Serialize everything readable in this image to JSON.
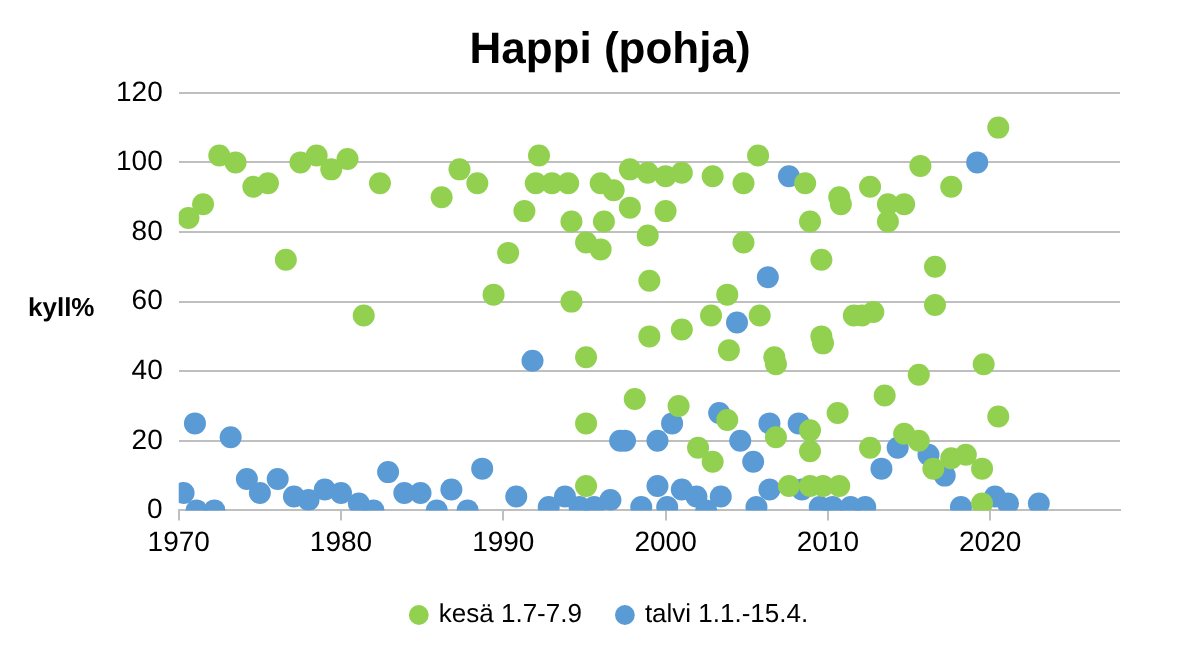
{
  "chart_data": {
    "type": "scatter",
    "title": "Happi (pohja)",
    "ylabel": "kyll%",
    "xlim": [
      1970,
      2028
    ],
    "xticks": [
      1970,
      1980,
      1990,
      2000,
      2010,
      2020
    ],
    "ylim": [
      0,
      120
    ],
    "yticks": [
      0,
      20,
      40,
      60,
      80,
      100,
      120
    ],
    "grid": "y",
    "legend": "bottom",
    "marker": "circle",
    "series": [
      {
        "name": "kesä 1.7-7.9",
        "color": "#92d050",
        "x": [
          1970.6,
          1971.5,
          1972.5,
          1973.5,
          1974.6,
          1975.5,
          1976.6,
          1977.5,
          1978.5,
          1979.4,
          1980.4,
          1981.4,
          1982.4,
          1986.2,
          1987.3,
          1988.4,
          1989.4,
          1990.3,
          1991.3,
          1992.2,
          1992,
          1993,
          1994,
          1994.2,
          1994.2,
          1995.1,
          1996,
          1995.1,
          1995.1,
          1995.1,
          1996.2,
          1996,
          1996.8,
          1997.8,
          1997.8,
          1998.9,
          1998.9,
          1999,
          1999,
          1998.1,
          2000,
          2000,
          2000.8,
          2001,
          2001,
          2002,
          2002.9,
          2002.8,
          2003.8,
          2003.9,
          2003.8,
          2002.9,
          2004.8,
          2004.8,
          2005.7,
          2005.8,
          2006.7,
          2006.8,
          2006.8,
          2007.6,
          2008.6,
          2008.9,
          2009.6,
          2009.6,
          2008.9,
          2008.9,
          2009.7,
          2008.9,
          2010.6,
          2010.7,
          2010.8,
          2009.7,
          2010.7,
          2011.6,
          2012.1,
          2012.8,
          2012.6,
          2012.6,
          2013.5,
          2013.7,
          2013.7,
          2014.7,
          2014.7,
          2015.6,
          2015.7,
          2015.6,
          2016.6,
          2016.6,
          2016.5,
          2017.6,
          2017.6,
          2018.5,
          2019.5,
          2019.6,
          2019.5,
          2020.5,
          2020.5
        ],
        "values": [
          84,
          88,
          102,
          100,
          93,
          94,
          72,
          100,
          102,
          98,
          101,
          56,
          94,
          90,
          98,
          94,
          62,
          74,
          86,
          102,
          94,
          94,
          94,
          83,
          60,
          77,
          75,
          44,
          25,
          7,
          83,
          94,
          92,
          98,
          87,
          97,
          79,
          66,
          50,
          32,
          96,
          86,
          30,
          52,
          97,
          18,
          14,
          56,
          62,
          46,
          26,
          96,
          94,
          77,
          102,
          56,
          44,
          42,
          21,
          7,
          94,
          83,
          72,
          50,
          23,
          7,
          48,
          17,
          28,
          90,
          88,
          7,
          7,
          56,
          56,
          57,
          93,
          18,
          33,
          88,
          83,
          88,
          22,
          39,
          99,
          20,
          70,
          59,
          12,
          93,
          15,
          16,
          12,
          42,
          2,
          27,
          110
        ]
      },
      {
        "name": "talvi 1.1.-15.4.",
        "color": "#5b9bd5",
        "x": [
          1970.3,
          1971,
          1971.1,
          1972.2,
          1973.2,
          1974.2,
          1975,
          1976.1,
          1977.1,
          1978,
          1979,
          1980,
          1981.1,
          1982,
          1982.9,
          1983.9,
          1984.9,
          1985.9,
          1986.8,
          1987.8,
          1988.7,
          1990.8,
          1991.8,
          1992.8,
          1993.8,
          1994.7,
          1995.6,
          1996.6,
          1997.2,
          1997.5,
          1998.5,
          1999.5,
          1999.5,
          2000.4,
          2000.1,
          2001,
          2001.9,
          2002.5,
          2003.3,
          2003.4,
          2004.4,
          2004.6,
          2005.4,
          2005.6,
          2006.3,
          2006.4,
          2006.4,
          2007.6,
          2008.2,
          2008.4,
          2009.5,
          2010.3,
          2011.4,
          2012.3,
          2013.3,
          2014.3,
          2016.2,
          2017.2,
          2018.2,
          2019.2,
          2020.3,
          2021.1,
          2023
        ],
        "values": [
          5,
          25,
          0,
          0,
          21,
          9,
          5,
          9,
          4,
          3,
          6,
          5,
          2,
          0,
          11,
          5,
          5,
          0,
          6,
          0,
          12,
          4,
          43,
          1,
          4,
          1,
          1,
          3,
          20,
          20,
          1,
          20,
          7,
          25,
          1,
          6,
          4,
          0,
          28,
          4,
          54,
          20,
          14,
          1,
          67,
          25,
          6,
          96,
          25,
          6,
          1,
          1,
          1,
          1,
          12,
          18,
          16,
          10,
          1,
          100,
          4,
          2,
          2
        ]
      }
    ]
  }
}
